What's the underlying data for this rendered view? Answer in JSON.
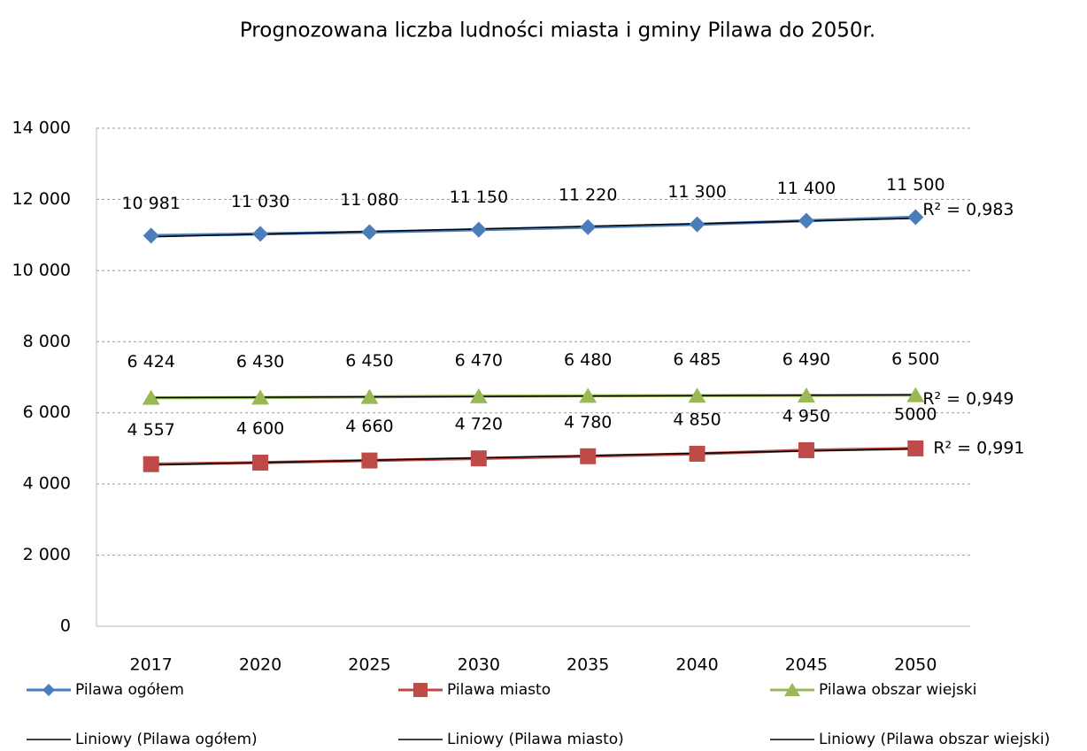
{
  "chart_data": {
    "type": "line",
    "title": "Prognozowana liczba ludności  miasta i gminy Pilawa do 2050r.",
    "categories": [
      "2017",
      "2020",
      "2025",
      "2030",
      "2035",
      "2040",
      "2045",
      "2050"
    ],
    "series": [
      {
        "name": "Pilawa ogółem",
        "color": "#4a7ebb",
        "marker": "diamond",
        "values": [
          10981,
          11030,
          11080,
          11150,
          11220,
          11300,
          11400,
          11500
        ],
        "value_labels": [
          "10 981",
          "11 030",
          "11 080",
          "11 150",
          "11 220",
          "11 300",
          "11 400",
          "11 500"
        ],
        "trendline": {
          "name": "Liniowy (Pilawa ogółem)",
          "label": "R² = 0,983"
        }
      },
      {
        "name": "Pilawa miasto",
        "color": "#be4b48",
        "marker": "square",
        "values": [
          4557,
          4600,
          4660,
          4720,
          4780,
          4850,
          4950,
          5000
        ],
        "value_labels": [
          "4 557",
          "4 600",
          "4 660",
          "4 720",
          "4 780",
          "4 850",
          "4 950",
          "5000"
        ],
        "trendline": {
          "name": "Liniowy (Pilawa miasto)",
          "label": "R² = 0,991"
        }
      },
      {
        "name": "Pilawa obszar wiejski",
        "color": "#98b954",
        "marker": "triangle",
        "values": [
          6424,
          6430,
          6450,
          6470,
          6480,
          6485,
          6490,
          6500
        ],
        "value_labels": [
          "6 424",
          "6 430",
          "6 450",
          "6 470",
          "6 480",
          "6 485",
          "6 490",
          "6 500"
        ],
        "trendline": {
          "name": "Liniowy (Pilawa obszar wiejski)",
          "label": "R² = 0,949"
        }
      }
    ],
    "ylim": [
      0,
      14000
    ],
    "yticks": [
      0,
      {
        "value": 2000,
        "label": "2 000"
      },
      {
        "value": 4000,
        "label": "4 000"
      },
      {
        "value": 6000,
        "label": "6 000"
      },
      {
        "value": 8000,
        "label": "8 000"
      },
      {
        "value": 10000,
        "label": "10 000"
      },
      {
        "value": 12000,
        "label": "12 000"
      },
      {
        "value": 14000,
        "label": "14 000"
      }
    ],
    "grid": true,
    "legend": "bottom"
  }
}
